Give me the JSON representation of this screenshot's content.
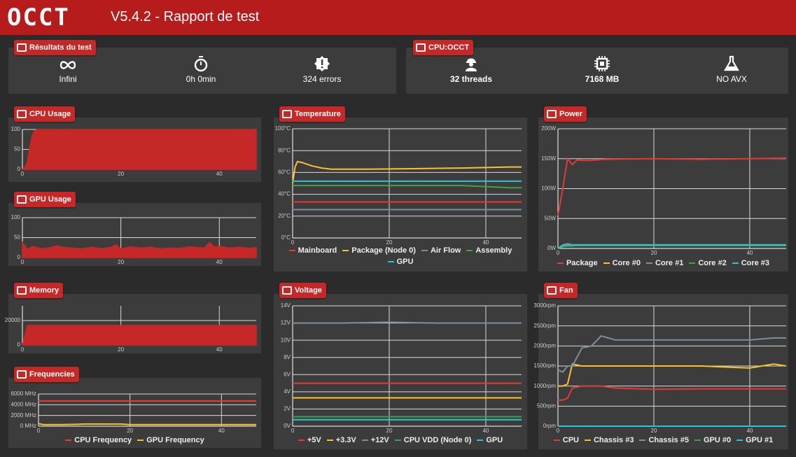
{
  "header": {
    "logo": "OCCT",
    "title": "V5.4.2 - Rapport de test"
  },
  "summary": [
    {
      "title": "Résultats du test",
      "items": [
        "Infini",
        "0h 0min",
        "324 errors"
      ]
    },
    {
      "title": "CPU:OCCT",
      "items": [
        "32 threads",
        "7168 MB",
        "NO AVX"
      ]
    }
  ],
  "chart_data": [
    {
      "type": "area",
      "title": "CPU Usage",
      "color": "#c62828",
      "x": [
        0,
        0.5,
        1,
        1.5,
        2,
        2.5,
        3,
        47.5
      ],
      "values": [
        0,
        5,
        20,
        55,
        85,
        97,
        100,
        100
      ],
      "xlim": [
        0,
        47.5
      ],
      "xticks": [
        0,
        20,
        40
      ],
      "ylim": [
        0,
        100
      ],
      "yticks": [
        0,
        50,
        100
      ],
      "grid": true
    },
    {
      "type": "area",
      "title": "GPU Usage",
      "color": "#c62828",
      "x": [
        0,
        1,
        2,
        4,
        6,
        7,
        8,
        10,
        12,
        14,
        16,
        18,
        19,
        20,
        22,
        24,
        26,
        28,
        30,
        32,
        34,
        37,
        38,
        39,
        40,
        42,
        44,
        46,
        47.5
      ],
      "values": [
        38,
        20,
        28,
        22,
        26,
        30,
        26,
        24,
        22,
        26,
        22,
        26,
        32,
        22,
        27,
        24,
        26,
        22,
        24,
        23,
        27,
        24,
        38,
        26,
        28,
        24,
        26,
        23,
        25
      ],
      "xlim": [
        0,
        47.5
      ],
      "xticks": [
        0,
        20,
        40
      ],
      "ylim": [
        0,
        100
      ],
      "yticks": [
        0,
        50,
        100
      ],
      "grid": true
    },
    {
      "type": "area",
      "title": "Memory",
      "color": "#c62828",
      "x": [
        0,
        0.5,
        1,
        47.5
      ],
      "values": [
        0,
        8000,
        16000,
        16000
      ],
      "xlim": [
        0,
        47.5
      ],
      "xticks": [
        0,
        20,
        40
      ],
      "ylim": [
        0,
        32000
      ],
      "yticks": [
        0,
        20000
      ],
      "grid": true
    },
    {
      "type": "line",
      "title": "Frequencies",
      "x": [
        0,
        1,
        2,
        5,
        8,
        10,
        18,
        20,
        30,
        40,
        47.6
      ],
      "series": [
        {
          "name": "CPU Frequency",
          "color": "#e53935",
          "values": [
            4700,
            4700,
            4700,
            4700,
            4700,
            4700,
            4700,
            4700,
            4700,
            4700,
            4700
          ]
        },
        {
          "name": "GPU Frequency",
          "color": "#fbc02d",
          "values": [
            500,
            300,
            300,
            300,
            350,
            400,
            400,
            300,
            300,
            300,
            300
          ]
        }
      ],
      "xlim": [
        0,
        47.6
      ],
      "xticks": [
        0,
        20,
        40
      ],
      "ylim": [
        0,
        6000
      ],
      "yticks": [
        {
          "value": 0,
          "label": "0 MHz"
        },
        {
          "value": 2000,
          "label": "2000 MHz"
        },
        {
          "value": 4000,
          "label": "4000 MHz"
        },
        {
          "value": 6000,
          "label": "6000 MHz"
        }
      ],
      "grid": true
    },
    {
      "type": "line",
      "title": "Temperature",
      "x": [
        0,
        0.5,
        1,
        2,
        4,
        6,
        8,
        15,
        25,
        35,
        45,
        47.4
      ],
      "series": [
        {
          "name": "Mainboard",
          "color": "#e53935",
          "values": [
            33,
            33,
            33,
            33,
            33,
            33,
            33,
            33,
            33,
            33,
            33,
            33
          ]
        },
        {
          "name": "Package (Node 0)",
          "color": "#fbc02d",
          "values": [
            50,
            65,
            70,
            69,
            66,
            64,
            63,
            63,
            63.5,
            64,
            65,
            65
          ]
        },
        {
          "name": "Air Flow",
          "color": "#78909c",
          "values": [
            26,
            26,
            26,
            26,
            26,
            26,
            26,
            26,
            26,
            26,
            26,
            26
          ]
        },
        {
          "name": "Assembly",
          "color": "#43a047",
          "values": [
            48,
            48,
            48,
            48,
            48,
            48,
            48,
            48,
            48,
            48,
            46,
            46
          ]
        },
        {
          "name": "GPU",
          "color": "#26c6da",
          "values": [
            52,
            52,
            52,
            52,
            52,
            52,
            52,
            52,
            52,
            52,
            52,
            52
          ]
        }
      ],
      "xlim": [
        0,
        47.4
      ],
      "xticks": [
        0,
        20,
        40
      ],
      "ylim": [
        0,
        100
      ],
      "yticks": [
        {
          "value": 0,
          "label": "0°C"
        },
        {
          "value": 20,
          "label": "20°C"
        },
        {
          "value": 40,
          "label": "40°C"
        },
        {
          "value": 60,
          "label": "60°C"
        },
        {
          "value": 80,
          "label": "80°C"
        },
        {
          "value": 100,
          "label": "100°C"
        }
      ],
      "grid": true
    },
    {
      "type": "line",
      "title": "Power",
      "x": [
        0,
        1,
        2,
        3,
        4,
        6,
        10,
        20,
        30,
        40,
        47.6
      ],
      "series": [
        {
          "name": "Package",
          "color": "#e53935",
          "values": [
            55,
            100,
            150,
            140,
            148,
            147,
            149,
            150,
            149,
            150,
            151
          ]
        },
        {
          "name": "Core #0",
          "color": "#fbc02d",
          "values": [
            0,
            5,
            6,
            5,
            5,
            5,
            5,
            5,
            5,
            5,
            5
          ]
        },
        {
          "name": "Core #1",
          "color": "#78909c",
          "values": [
            0,
            6,
            8,
            6,
            6,
            6,
            6,
            6,
            6,
            6,
            6
          ]
        },
        {
          "name": "Core #2",
          "color": "#43a047",
          "values": [
            0,
            3,
            4,
            4,
            5,
            5,
            5,
            5,
            5,
            5,
            5
          ]
        },
        {
          "name": "Core #3",
          "color": "#26c6da",
          "values": [
            0,
            5,
            6,
            6,
            6,
            6,
            6,
            6,
            6,
            6,
            6
          ]
        }
      ],
      "xlim": [
        0,
        47.6
      ],
      "xticks": [
        0,
        20,
        40
      ],
      "ylim": [
        0,
        200
      ],
      "yticks": [
        {
          "value": 0,
          "label": "0W"
        },
        {
          "value": 50,
          "label": "50W"
        },
        {
          "value": 100,
          "label": "100W"
        },
        {
          "value": 150,
          "label": "150W"
        },
        {
          "value": 200,
          "label": "200W"
        }
      ],
      "grid": true
    },
    {
      "type": "line",
      "title": "Voltage",
      "x": [
        0,
        10,
        20,
        30,
        40,
        47.4
      ],
      "series": [
        {
          "name": "+5V",
          "color": "#e53935",
          "values": [
            5,
            5,
            5,
            5,
            5,
            5
          ]
        },
        {
          "name": "+3.3V",
          "color": "#fbc02d",
          "values": [
            3.3,
            3.3,
            3.3,
            3.3,
            3.3,
            3.3
          ]
        },
        {
          "name": "+12V",
          "color": "#78909c",
          "values": [
            12,
            12,
            12.1,
            12,
            12,
            12
          ]
        },
        {
          "name": "CPU VDD (Node 0)",
          "color": "#43a047",
          "values": [
            1.1,
            1.1,
            1.1,
            1.1,
            1.1,
            1.1
          ]
        },
        {
          "name": "GPU",
          "color": "#26c6da",
          "values": [
            0.75,
            0.75,
            0.75,
            0.75,
            0.75,
            0.75
          ]
        }
      ],
      "xlim": [
        0,
        47.4
      ],
      "xticks": [
        0,
        20,
        40
      ],
      "ylim": [
        0,
        14
      ],
      "yticks": [
        {
          "value": 0,
          "label": "0V"
        },
        {
          "value": 2,
          "label": "2V"
        },
        {
          "value": 4,
          "label": "4V"
        },
        {
          "value": 6,
          "label": "6V"
        },
        {
          "value": 8,
          "label": "8V"
        },
        {
          "value": 10,
          "label": "10V"
        },
        {
          "value": 12,
          "label": "12V"
        },
        {
          "value": 14,
          "label": "14V"
        }
      ],
      "grid": true
    },
    {
      "type": "line",
      "title": "Fan",
      "x": [
        0,
        1,
        2,
        3,
        5,
        7,
        9,
        12,
        20,
        30,
        40,
        45,
        47.6
      ],
      "series": [
        {
          "name": "CPU",
          "color": "#e53935",
          "values": [
            650,
            650,
            700,
            950,
            1000,
            1000,
            1000,
            950,
            920,
            930,
            930,
            930,
            930
          ]
        },
        {
          "name": "Chassis #3",
          "color": "#fbc02d",
          "values": [
            1000,
            1000,
            1050,
            1550,
            1500,
            1500,
            1500,
            1500,
            1500,
            1500,
            1450,
            1550,
            1500
          ]
        },
        {
          "name": "Chassis #5",
          "color": "#78909c",
          "values": [
            1400,
            1350,
            1500,
            1500,
            1950,
            2000,
            2250,
            2150,
            2150,
            2150,
            2150,
            2200,
            2200
          ]
        },
        {
          "name": "GPU #0",
          "color": "#43a047",
          "values": [
            0,
            0,
            0,
            0,
            0,
            0,
            0,
            0,
            0,
            0,
            0,
            0,
            0
          ]
        },
        {
          "name": "GPU #1",
          "color": "#26c6da",
          "values": [
            0,
            0,
            0,
            0,
            0,
            0,
            0,
            0,
            0,
            0,
            0,
            0,
            0
          ]
        }
      ],
      "xlim": [
        0,
        47.6
      ],
      "xticks": [
        0,
        20,
        40
      ],
      "ylim": [
        0,
        3000
      ],
      "yticks": [
        {
          "value": 0,
          "label": "0rpm"
        },
        {
          "value": 500,
          "label": "500rpm"
        },
        {
          "value": 1000,
          "label": "1000rpm"
        },
        {
          "value": 1500,
          "label": "1500rpm"
        },
        {
          "value": 2000,
          "label": "2000rpm"
        },
        {
          "value": 2500,
          "label": "2500rpm"
        },
        {
          "value": 3000,
          "label": "3000rpm"
        }
      ],
      "grid": true
    }
  ]
}
